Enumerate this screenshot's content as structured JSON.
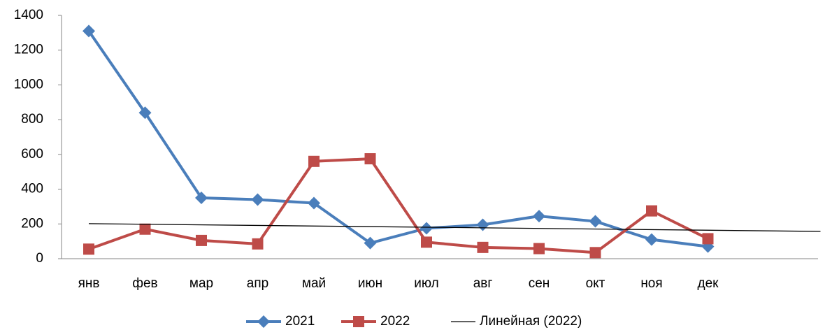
{
  "chart_data": {
    "type": "line",
    "categories": [
      "янв",
      "фев",
      "мар",
      "апр",
      "май",
      "июн",
      "июл",
      "авг",
      "сен",
      "окт",
      "ноя",
      "дек"
    ],
    "series": [
      {
        "name": "2021",
        "color": "#4a7ebb",
        "marker": "diamond",
        "values": [
          1310,
          840,
          350,
          340,
          320,
          90,
          175,
          195,
          245,
          215,
          110,
          70
        ]
      },
      {
        "name": "2022",
        "color": "#be4b48",
        "marker": "square",
        "values": [
          55,
          170,
          105,
          85,
          560,
          575,
          95,
          65,
          58,
          35,
          275,
          115
        ]
      }
    ],
    "trendline": {
      "name": "Линейная (2022)",
      "type": "linear",
      "series": 1,
      "forward": 2,
      "color": "#000000"
    },
    "ylim": [
      0,
      1400
    ],
    "yticks": [
      0,
      200,
      400,
      600,
      800,
      1000,
      1200,
      1400
    ],
    "grid": false,
    "legend": "bottom"
  }
}
